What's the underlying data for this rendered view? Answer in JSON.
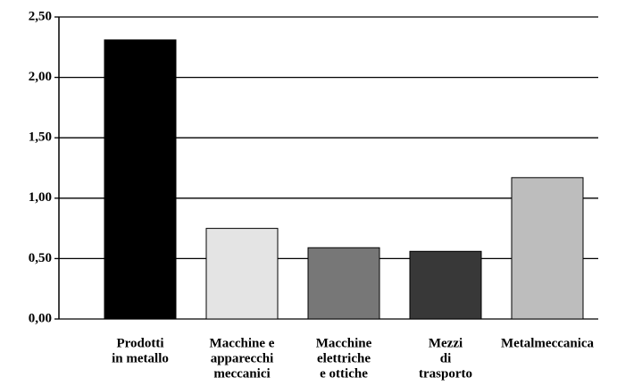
{
  "chart_data": {
    "type": "bar",
    "categories": [
      [
        "Prodotti",
        "in metallo"
      ],
      [
        "Macchine e",
        "apparecchi",
        "meccanici"
      ],
      [
        "Macchine",
        "elettriche",
        "e ottiche"
      ],
      [
        "Mezzi",
        "di",
        "trasporto"
      ],
      [
        "Metalmeccanica"
      ]
    ],
    "values": [
      2.31,
      0.75,
      0.59,
      0.56,
      1.17
    ],
    "colors": [
      "#000000",
      "#e4e4e4",
      "#777777",
      "#383838",
      "#bdbdbd"
    ],
    "ylim": [
      0,
      2.5
    ],
    "yticks": [
      {
        "value": 0,
        "label": "0,00"
      },
      {
        "value": 0.5,
        "label": "0,50"
      },
      {
        "value": 1,
        "label": "1,00"
      },
      {
        "value": 1.5,
        "label": "1,50"
      },
      {
        "value": 2,
        "label": "2,00"
      },
      {
        "value": 2.5,
        "label": "2,50"
      }
    ],
    "grid": true
  }
}
